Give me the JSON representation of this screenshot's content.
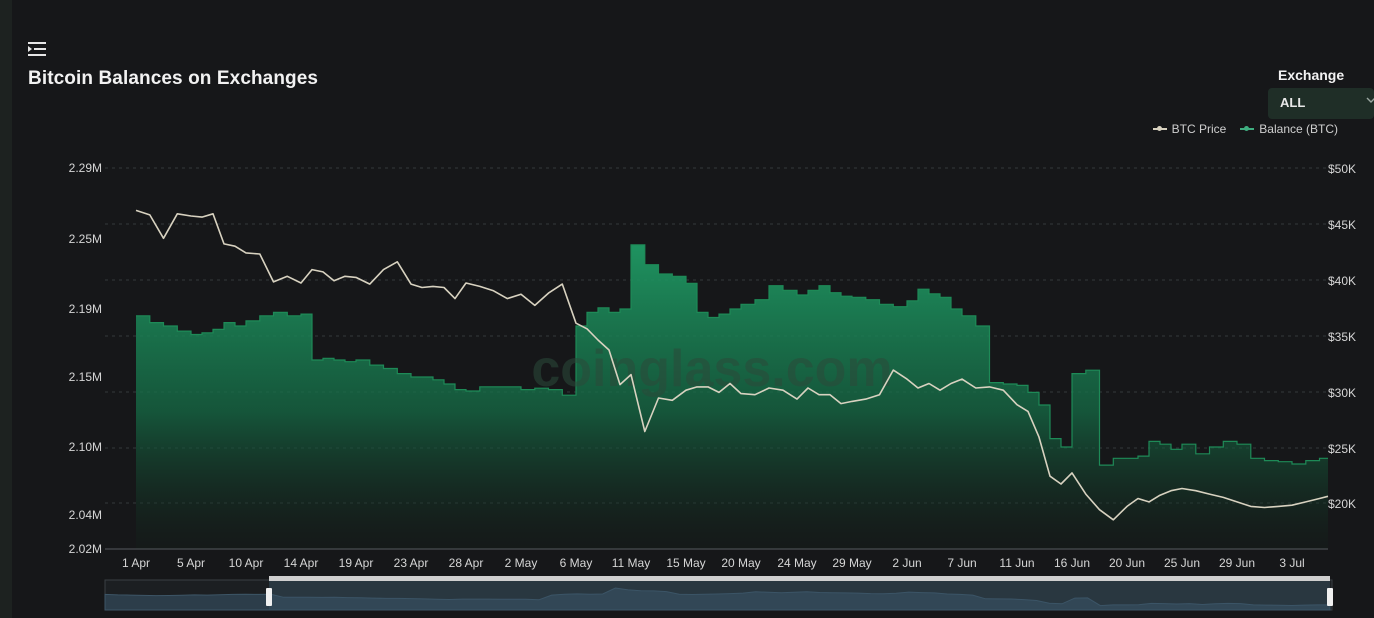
{
  "header": {
    "title": "Bitcoin Balances on Exchanges",
    "menu_icon": "menu-collapse-icon"
  },
  "exchange": {
    "label": "Exchange",
    "selected": "ALL",
    "icon": "chevron-down-icon"
  },
  "watermark": "coinglass.com",
  "colors": {
    "background": "#161719",
    "price_line": "#d8d2c0",
    "balance_line": "#1e8a57",
    "balance_fill_top": "#1d9a63",
    "grid": "#34383c"
  },
  "chart_data": {
    "type": "area",
    "title": "Bitcoin Balances on Exchanges",
    "legend_position": "top-right",
    "grid": true,
    "x_labels": [
      "1 Apr",
      "5 Apr",
      "10 Apr",
      "14 Apr",
      "19 Apr",
      "23 Apr",
      "28 Apr",
      "2 May",
      "6 May",
      "11 May",
      "15 May",
      "20 May",
      "24 May",
      "29 May",
      "2 Jun",
      "7 Jun",
      "11 Jun",
      "16 Jun",
      "20 Jun",
      "25 Jun",
      "29 Jun",
      "3 Jul"
    ],
    "y_left": {
      "ticks": [
        "2.29M",
        "2.25M",
        "2.19M",
        "2.15M",
        "2.10M",
        "2.04M",
        "2.02M"
      ]
    },
    "y_right": {
      "ticks": [
        "$50K",
        "$45K",
        "$40K",
        "$35K",
        "$30K",
        "$25K",
        "$20K"
      ]
    },
    "series": [
      {
        "name": "BTC Price",
        "axis": "right",
        "points": [
          [
            "1 Apr",
            46200
          ],
          [
            "2 Apr",
            45800
          ],
          [
            "3 Apr",
            43700
          ],
          [
            "4 Apr",
            45900
          ],
          [
            "5 Apr",
            45700
          ],
          [
            "6 Apr",
            45600
          ],
          [
            "7 Apr",
            45900
          ],
          [
            "8 Apr",
            43200
          ],
          [
            "9 Apr",
            43000
          ],
          [
            "10 Apr",
            42400
          ],
          [
            "11 Apr",
            42300
          ],
          [
            "12 Apr",
            39800
          ],
          [
            "13 Apr",
            40300
          ],
          [
            "14 Apr",
            39700
          ],
          [
            "15 Apr",
            40900
          ],
          [
            "16 Apr",
            40700
          ],
          [
            "17 Apr",
            39900
          ],
          [
            "18 Apr",
            40300
          ],
          [
            "19 Apr",
            40200
          ],
          [
            "20 Apr",
            39600
          ],
          [
            "21 Apr",
            40900
          ],
          [
            "22 Apr",
            41600
          ],
          [
            "23 Apr",
            39600
          ],
          [
            "24 Apr",
            39300
          ],
          [
            "25 Apr",
            39400
          ],
          [
            "26 Apr",
            39300
          ],
          [
            "27 Apr",
            38300
          ],
          [
            "28 Apr",
            39700
          ],
          [
            "29 Apr",
            39400
          ],
          [
            "30 Apr",
            39000
          ],
          [
            "1 May",
            38300
          ],
          [
            "2 May",
            38700
          ],
          [
            "3 May",
            37700
          ],
          [
            "4 May",
            38800
          ],
          [
            "5 May",
            39600
          ],
          [
            "6 May",
            36100
          ],
          [
            "7 May",
            35600
          ],
          [
            "8 May",
            34600
          ],
          [
            "9 May",
            33700
          ],
          [
            "10 May",
            30600
          ],
          [
            "11 May",
            31500
          ],
          [
            "12 May",
            26400
          ],
          [
            "13 May",
            29400
          ],
          [
            "14 May",
            29200
          ],
          [
            "15 May",
            30100
          ],
          [
            "16 May",
            30400
          ],
          [
            "17 May",
            30400
          ],
          [
            "18 May",
            29900
          ],
          [
            "19 May",
            30700
          ],
          [
            "20 May",
            29800
          ],
          [
            "21 May",
            29700
          ],
          [
            "22 May",
            30300
          ],
          [
            "23 May",
            30100
          ],
          [
            "24 May",
            29300
          ],
          [
            "25 May",
            30300
          ],
          [
            "26 May",
            29700
          ],
          [
            "27 May",
            29700
          ],
          [
            "28 May",
            28900
          ],
          [
            "29 May",
            29100
          ],
          [
            "30 May",
            29300
          ],
          [
            "31 May",
            29700
          ],
          [
            "1 Jun",
            31900
          ],
          [
            "2 Jun",
            31100
          ],
          [
            "3 Jun",
            30300
          ],
          [
            "4 Jun",
            30700
          ],
          [
            "5 Jun",
            30100
          ],
          [
            "6 Jun",
            30700
          ],
          [
            "7 Jun",
            31100
          ],
          [
            "8 Jun",
            30300
          ],
          [
            "9 Jun",
            30400
          ],
          [
            "10 Jun",
            30100
          ],
          [
            "11 Jun",
            28800
          ],
          [
            "12 Jun",
            28200
          ],
          [
            "13 Jun",
            25900
          ],
          [
            "14 Jun",
            22400
          ],
          [
            "15 Jun",
            21700
          ],
          [
            "16 Jun",
            22700
          ],
          [
            "17 Jun",
            20800
          ],
          [
            "18 Jun",
            19400
          ],
          [
            "19 Jun",
            18500
          ],
          [
            "20 Jun",
            19700
          ],
          [
            "21 Jun",
            20400
          ],
          [
            "22 Jun",
            20100
          ],
          [
            "23 Jun",
            20700
          ],
          [
            "24 Jun",
            21100
          ],
          [
            "25 Jun",
            21300
          ],
          [
            "26 Jun",
            21100
          ],
          [
            "27 Jun",
            20800
          ],
          [
            "28 Jun",
            20500
          ],
          [
            "29 Jun",
            20100
          ],
          [
            "30 Jun",
            19700
          ],
          [
            "1 Jul",
            19600
          ],
          [
            "2 Jul",
            19700
          ],
          [
            "3 Jul",
            19800
          ],
          [
            "4 Jul",
            20100
          ],
          [
            "5 Jul",
            20400
          ],
          [
            "6 Jul",
            20600
          ]
        ]
      },
      {
        "name": "Balance (BTC)",
        "axis": "left",
        "points": [
          [
            "1 Apr",
            2186000
          ],
          [
            "2 Apr",
            2182000
          ],
          [
            "3 Apr",
            2180000
          ],
          [
            "4 Apr",
            2177000
          ],
          [
            "5 Apr",
            2175000
          ],
          [
            "6 Apr",
            2176000
          ],
          [
            "7 Apr",
            2178000
          ],
          [
            "8 Apr",
            2182000
          ],
          [
            "9 Apr",
            2180000
          ],
          [
            "10 Apr",
            2183000
          ],
          [
            "11 Apr",
            2186000
          ],
          [
            "12 Apr",
            2188000
          ],
          [
            "13 Apr",
            2186000
          ],
          [
            "14 Apr",
            2187000
          ],
          [
            "15 Apr",
            2160000
          ],
          [
            "16 Apr",
            2161000
          ],
          [
            "17 Apr",
            2160000
          ],
          [
            "18 Apr",
            2159000
          ],
          [
            "19 Apr",
            2160000
          ],
          [
            "20 Apr",
            2157000
          ],
          [
            "21 Apr",
            2155000
          ],
          [
            "22 Apr",
            2152000
          ],
          [
            "23 Apr",
            2150000
          ],
          [
            "24 Apr",
            2150000
          ],
          [
            "25 Apr",
            2148000
          ],
          [
            "26 Apr",
            2145000
          ],
          [
            "27 Apr",
            2141000
          ],
          [
            "28 Apr",
            2140000
          ],
          [
            "29 Apr",
            2143000
          ],
          [
            "30 Apr",
            2143000
          ],
          [
            "1 May",
            2143000
          ],
          [
            "2 May",
            2141000
          ],
          [
            "3 May",
            2142000
          ],
          [
            "4 May",
            2141000
          ],
          [
            "5 May",
            2137000
          ],
          [
            "6 May",
            2180000
          ],
          [
            "7 May",
            2188000
          ],
          [
            "8 May",
            2191000
          ],
          [
            "9 May",
            2188000
          ],
          [
            "10 May",
            2190000
          ],
          [
            "11 May",
            2245000
          ],
          [
            "12 May",
            2228000
          ],
          [
            "13 May",
            2220000
          ],
          [
            "14 May",
            2218000
          ],
          [
            "15 May",
            2212000
          ],
          [
            "16 May",
            2188000
          ],
          [
            "17 May",
            2185000
          ],
          [
            "18 May",
            2187000
          ],
          [
            "19 May",
            2190000
          ],
          [
            "20 May",
            2194000
          ],
          [
            "21 May",
            2198000
          ],
          [
            "22 May",
            2210000
          ],
          [
            "23 May",
            2206000
          ],
          [
            "24 May",
            2202000
          ],
          [
            "25 May",
            2206000
          ],
          [
            "26 May",
            2210000
          ],
          [
            "27 May",
            2204000
          ],
          [
            "28 May",
            2201000
          ],
          [
            "29 May",
            2200000
          ],
          [
            "30 May",
            2198000
          ],
          [
            "31 May",
            2194000
          ],
          [
            "1 Jun",
            2192000
          ],
          [
            "2 Jun",
            2197000
          ],
          [
            "3 Jun",
            2207000
          ],
          [
            "4 Jun",
            2203000
          ],
          [
            "5 Jun",
            2200000
          ],
          [
            "6 Jun",
            2190000
          ],
          [
            "7 Jun",
            2186000
          ],
          [
            "8 Jun",
            2180000
          ],
          [
            "9 Jun",
            2146000
          ],
          [
            "10 Jun",
            2145000
          ],
          [
            "11 Jun",
            2144000
          ],
          [
            "12 Jun",
            2139000
          ],
          [
            "13 Jun",
            2130000
          ],
          [
            "14 Jun",
            2106000
          ],
          [
            "15 Jun",
            2100000
          ],
          [
            "16 Jun",
            2152000
          ],
          [
            "17 Jun",
            2154000
          ],
          [
            "18 Jun",
            2084000
          ],
          [
            "19 Jun",
            2090000
          ],
          [
            "20 Jun",
            2090000
          ],
          [
            "21 Jun",
            2092000
          ],
          [
            "22 Jun",
            2104000
          ],
          [
            "23 Jun",
            2102000
          ],
          [
            "24 Jun",
            2098000
          ],
          [
            "25 Jun",
            2102000
          ],
          [
            "26 Jun",
            2094000
          ],
          [
            "27 Jun",
            2100000
          ],
          [
            "28 Jun",
            2104000
          ],
          [
            "29 Jun",
            2102000
          ],
          [
            "30 Jun",
            2090000
          ],
          [
            "1 Jul",
            2088000
          ],
          [
            "2 Jul",
            2087000
          ],
          [
            "3 Jul",
            2085000
          ],
          [
            "4 Jul",
            2088000
          ],
          [
            "5 Jul",
            2090000
          ],
          [
            "6 Jul",
            2090000
          ]
        ]
      }
    ]
  }
}
